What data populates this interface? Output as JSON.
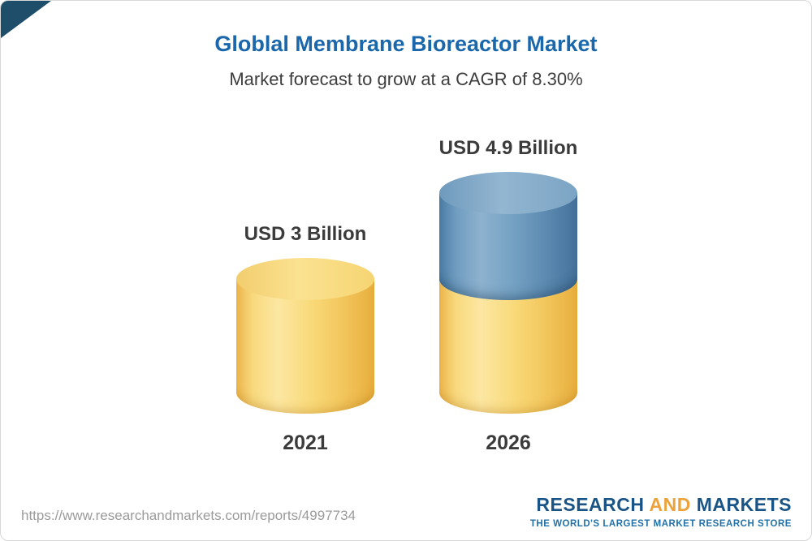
{
  "header": {
    "title": "Globlal Membrane Bioreactor Market",
    "subtitle": "Market forecast to grow at a CAGR of 8.30%"
  },
  "chart_data": {
    "type": "bar",
    "title": "Globlal Membrane Bioreactor Market",
    "subtitle": "Market forecast to grow at a CAGR of 8.30%",
    "unit": "USD Billion",
    "cagr_percent": 8.3,
    "categories": [
      "2021",
      "2026"
    ],
    "values": [
      3,
      4.9
    ],
    "ylim": [
      0,
      5.5
    ],
    "grid": false,
    "legend": "none",
    "bars": [
      {
        "category": "2021",
        "total": 3,
        "value_label": "USD 3 Billion",
        "segments": [
          {
            "color_key": "base",
            "value": 3
          }
        ]
      },
      {
        "category": "2026",
        "total": 4.9,
        "value_label": "USD 4.9 Billion",
        "segments": [
          {
            "color_key": "base",
            "value": 3
          },
          {
            "color_key": "growth",
            "value": 1.9
          }
        ]
      }
    ],
    "colors": {
      "base": "#f6cd68",
      "growth": "#6d9bbf",
      "title": "#1a67ab",
      "text": "#3b3b3b"
    }
  },
  "footer": {
    "url": "https://www.researchandmarkets.com/reports/4997734",
    "logo": {
      "word1": "RESEARCH",
      "word2": "AND",
      "word3": "MARKETS",
      "tagline": "THE WORLD'S LARGEST MARKET RESEARCH STORE",
      "navy": "#1a5486",
      "gold": "#eca33b"
    }
  }
}
